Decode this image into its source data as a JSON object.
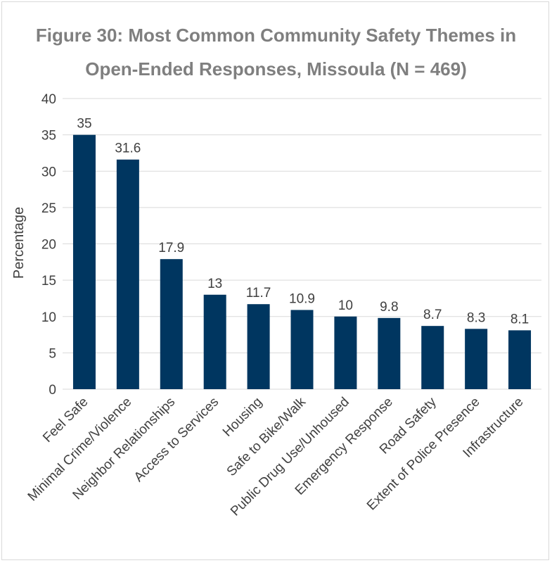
{
  "chart_data": {
    "type": "bar",
    "title_line1": "Figure 30: Most Common Community Safety Themes in",
    "title_line2": "Open-Ended Responses, Missoula  (N = 469)",
    "ylabel": "Percentage",
    "xlabel": "",
    "ylim": [
      0,
      40
    ],
    "yticks": [
      0,
      5,
      10,
      15,
      20,
      25,
      30,
      35,
      40
    ],
    "grid": true,
    "bar_color": "#003660",
    "categories": [
      "Feel Safe",
      "Minimal Crime/Violence",
      "Neighbor Relationships",
      "Access to Services",
      "Housing",
      "Safe to Bike/Walk",
      "Public Drug Use/Unhoused",
      "Emergency Response",
      "Road Safety",
      "Extent of Police Presence",
      "Infrastructure"
    ],
    "values": [
      35,
      31.6,
      17.9,
      13,
      11.7,
      10.9,
      10,
      9.8,
      8.7,
      8.3,
      8.1
    ],
    "data_labels": [
      "35",
      "31.6",
      "17.9",
      "13",
      "11.7",
      "10.9",
      "10",
      "9.8",
      "8.7",
      "8.3",
      "8.1"
    ]
  }
}
